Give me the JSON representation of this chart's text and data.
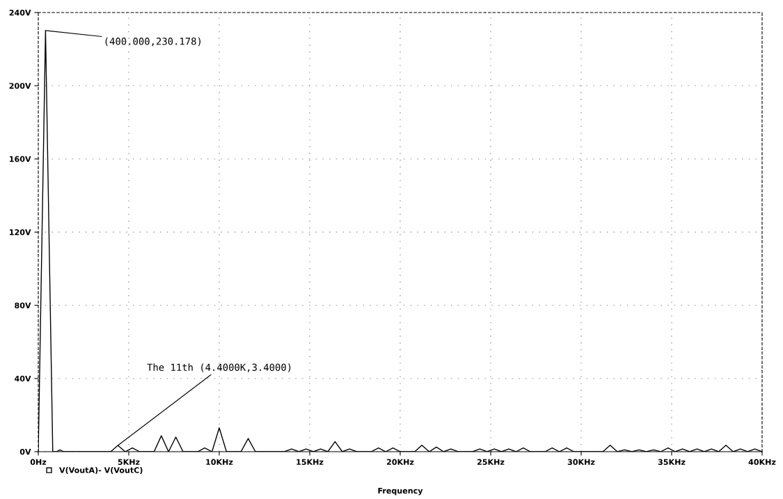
{
  "chart_data": {
    "type": "line",
    "xlabel": "Frequency",
    "x": [
      0,
      0.4,
      0.8,
      1.0,
      1.2,
      1.4,
      4.0,
      4.4,
      4.8,
      5.2,
      5.6,
      6.4,
      6.8,
      7.2,
      7.6,
      8.0,
      8.8,
      9.2,
      9.6,
      10.0,
      10.4,
      11.2,
      11.6,
      12.0,
      13.6,
      14.0,
      14.4,
      14.8,
      15.2,
      15.6,
      16.0,
      16.4,
      16.8,
      17.2,
      17.6,
      18.4,
      18.8,
      19.2,
      19.6,
      20.0,
      20.8,
      21.2,
      21.6,
      22.0,
      22.4,
      22.8,
      23.2,
      24.0,
      24.4,
      24.8,
      25.2,
      25.6,
      26.0,
      26.4,
      26.8,
      27.2,
      28.0,
      28.4,
      28.8,
      29.2,
      29.6,
      31.2,
      31.6,
      32.0,
      32.4,
      32.8,
      33.2,
      33.6,
      34.0,
      34.4,
      34.8,
      35.2,
      35.6,
      36.0,
      36.4,
      36.8,
      37.2,
      37.6,
      38.0,
      38.4,
      38.8,
      39.2,
      39.6,
      40.0
    ],
    "series": [
      {
        "name": "V(VoutA)- V(VoutC)",
        "color": "#000000",
        "values": [
          0,
          230.178,
          0,
          0,
          1,
          0,
          0,
          3.4,
          0,
          2,
          0,
          0,
          8.7,
          0,
          8,
          0,
          0,
          2,
          0,
          13,
          0,
          0,
          7.2,
          0,
          0,
          1.5,
          0,
          1.5,
          0,
          1.5,
          0,
          5.5,
          0,
          1.5,
          0,
          0,
          2,
          0,
          2,
          0,
          0,
          3.5,
          0,
          2.5,
          0,
          1.5,
          0,
          0,
          1.5,
          0,
          1.5,
          0,
          1.5,
          0,
          2,
          0,
          0,
          2,
          0,
          2,
          0,
          0,
          3.5,
          0,
          1,
          0,
          1,
          0,
          1,
          0,
          2,
          0,
          1.5,
          0,
          1.5,
          0,
          1.5,
          0,
          3.5,
          0,
          1.5,
          0,
          1.5,
          0
        ]
      }
    ],
    "xlim": [
      0,
      40
    ],
    "xticks": [
      {
        "value": 0,
        "label": "0Hz"
      },
      {
        "value": 5,
        "label": "5KHz"
      },
      {
        "value": 10,
        "label": "10KHz"
      },
      {
        "value": 15,
        "label": "15KHz"
      },
      {
        "value": 20,
        "label": "20KHz"
      },
      {
        "value": 25,
        "label": "25KHz"
      },
      {
        "value": 30,
        "label": "30KHz"
      },
      {
        "value": 35,
        "label": "35KHz"
      },
      {
        "value": 40,
        "label": "40KHz"
      }
    ],
    "ylim": [
      0,
      240
    ],
    "yticks": [
      {
        "value": 0,
        "label": "0V"
      },
      {
        "value": 40,
        "label": "40V"
      },
      {
        "value": 80,
        "label": "80V"
      },
      {
        "value": 120,
        "label": "120V"
      },
      {
        "value": 160,
        "label": "160V"
      },
      {
        "value": 200,
        "label": "200V"
      },
      {
        "value": 240,
        "label": "240V"
      }
    ],
    "annotations": [
      {
        "text": "(400.000,230.178)",
        "x": 0.4,
        "y": 230.178
      },
      {
        "text": "The 11th (4.4000K,3.4000)",
        "x": 4.4,
        "y": 3.4
      }
    ],
    "grid": true,
    "legend": "bottom left",
    "marker": "none",
    "line_style": "solid"
  }
}
